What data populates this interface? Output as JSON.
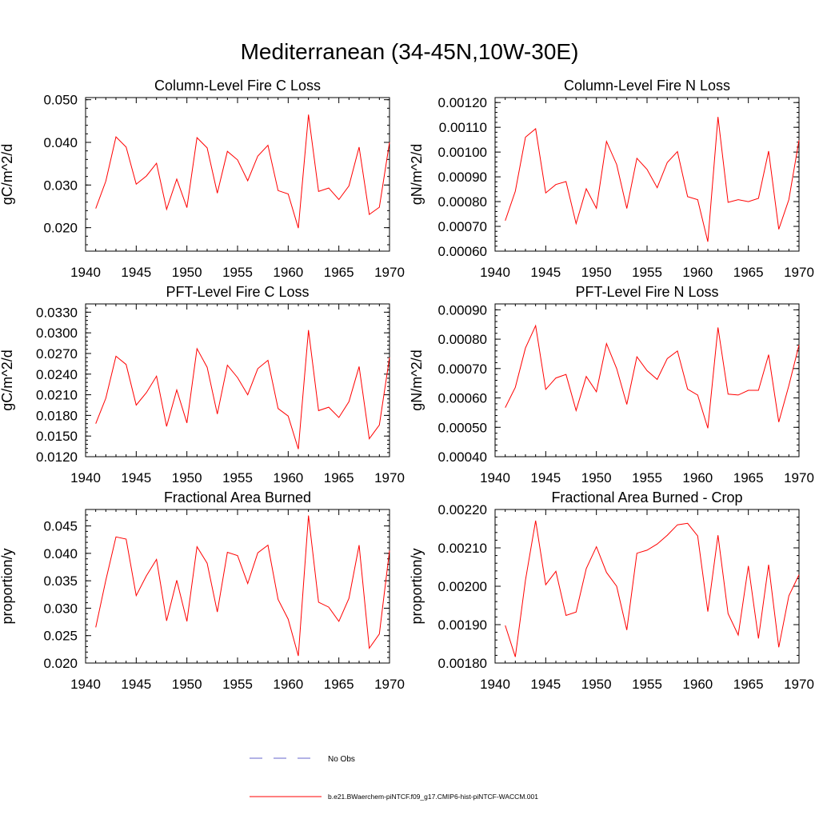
{
  "main_title": "Mediterranean (34-45N,10W-30E)",
  "colors": {
    "model": "#ff0000",
    "obs": "#6666cc",
    "axis": "#000000"
  },
  "legend": {
    "obs_label": "No Obs",
    "model_label": "b.e21.BWaerchem-piNTCF.f09_g17.CMIP6-hist-piNTCF-WACCM.001"
  },
  "chart_data": [
    {
      "type": "line",
      "title": "Column-Level Fire C Loss",
      "ylabel": "gC/m^2/d",
      "xlim": [
        1940,
        1970
      ],
      "ylim": [
        0.0145,
        0.0505
      ],
      "yticks": [
        0.02,
        0.03,
        0.04,
        0.05
      ],
      "ytick_labels": [
        "0.020",
        "0.030",
        "0.040",
        "0.050"
      ],
      "xticks": [
        1940,
        1945,
        1950,
        1955,
        1960,
        1965,
        1970
      ],
      "xtick_labels": [
        "1940",
        "1945",
        "1950",
        "1955",
        "1960",
        "1965",
        "1970"
      ],
      "x": [
        1941,
        1942,
        1943,
        1944,
        1945,
        1946,
        1947,
        1948,
        1949,
        1950,
        1951,
        1952,
        1953,
        1954,
        1955,
        1956,
        1957,
        1958,
        1959,
        1960,
        1961,
        1962,
        1963,
        1964,
        1965,
        1966,
        1967,
        1968,
        1969,
        1970
      ],
      "series": [
        {
          "values": [
            0.0245,
            0.0309,
            0.0413,
            0.0389,
            0.0302,
            0.0321,
            0.0351,
            0.0243,
            0.0314,
            0.0247,
            0.0411,
            0.0387,
            0.0281,
            0.0379,
            0.0359,
            0.031,
            0.0368,
            0.0393,
            0.0287,
            0.0279,
            0.0199,
            0.0465,
            0.0285,
            0.0293,
            0.0266,
            0.0298,
            0.0389,
            0.0231,
            0.0248,
            0.04
          ]
        }
      ]
    },
    {
      "type": "line",
      "title": "Column-Level Fire N Loss",
      "ylabel": "gN/m^2/d",
      "xlim": [
        1940,
        1970
      ],
      "ylim": [
        0.0006,
        0.00122
      ],
      "yticks": [
        0.0006,
        0.0007,
        0.0008,
        0.0009,
        0.001,
        0.0011,
        0.0012
      ],
      "ytick_labels": [
        "0.00060",
        "0.00070",
        "0.00080",
        "0.00090",
        "0.00100",
        "0.00110",
        "0.00120"
      ],
      "xticks": [
        1940,
        1945,
        1950,
        1955,
        1960,
        1965,
        1970
      ],
      "xtick_labels": [
        "1940",
        "1945",
        "1950",
        "1955",
        "1960",
        "1965",
        "1970"
      ],
      "x": [
        1941,
        1942,
        1943,
        1944,
        1945,
        1946,
        1947,
        1948,
        1949,
        1950,
        1951,
        1952,
        1953,
        1954,
        1955,
        1956,
        1957,
        1958,
        1959,
        1960,
        1961,
        1962,
        1963,
        1964,
        1965,
        1966,
        1967,
        1968,
        1969,
        1970
      ],
      "series": [
        {
          "values": [
            0.000723,
            0.000842,
            0.00106,
            0.001094,
            0.000835,
            0.000869,
            0.000881,
            0.000711,
            0.000852,
            0.000773,
            0.001043,
            0.00095,
            0.000772,
            0.000975,
            0.00093,
            0.000856,
            0.000958,
            0.001002,
            0.00082,
            0.000808,
            0.000638,
            0.001142,
            0.000797,
            0.000808,
            0.0008,
            0.000813,
            0.001004,
            0.000688,
            0.000808,
            0.001048
          ]
        }
      ]
    },
    {
      "type": "line",
      "title": "PFT-Level Fire C Loss",
      "ylabel": "gC/m^2/d",
      "xlim": [
        1940,
        1970
      ],
      "ylim": [
        0.012,
        0.0342
      ],
      "yticks": [
        0.012,
        0.015,
        0.018,
        0.021,
        0.024,
        0.027,
        0.03,
        0.033
      ],
      "ytick_labels": [
        "0.0120",
        "0.0150",
        "0.0180",
        "0.0210",
        "0.0240",
        "0.0270",
        "0.0300",
        "0.0330"
      ],
      "xticks": [
        1940,
        1945,
        1950,
        1955,
        1960,
        1965,
        1970
      ],
      "xtick_labels": [
        "1940",
        "1945",
        "1950",
        "1955",
        "1960",
        "1965",
        "1970"
      ],
      "x": [
        1941,
        1942,
        1943,
        1944,
        1945,
        1946,
        1947,
        1948,
        1949,
        1950,
        1951,
        1952,
        1953,
        1954,
        1955,
        1956,
        1957,
        1958,
        1959,
        1960,
        1961,
        1962,
        1963,
        1964,
        1965,
        1966,
        1967,
        1968,
        1969,
        1970
      ],
      "series": [
        {
          "values": [
            0.0168,
            0.0205,
            0.0266,
            0.0254,
            0.0195,
            0.0213,
            0.0237,
            0.0164,
            0.0217,
            0.0169,
            0.0277,
            0.025,
            0.0182,
            0.0253,
            0.0235,
            0.021,
            0.0248,
            0.026,
            0.019,
            0.0179,
            0.0131,
            0.0304,
            0.0187,
            0.0192,
            0.0177,
            0.02,
            0.0251,
            0.0146,
            0.0166,
            0.0264
          ]
        }
      ]
    },
    {
      "type": "line",
      "title": "PFT-Level Fire N Loss",
      "ylabel": "gN/m^2/d",
      "xlim": [
        1940,
        1970
      ],
      "ylim": [
        0.0004,
        0.00092
      ],
      "yticks": [
        0.0004,
        0.0005,
        0.0006,
        0.0007,
        0.0008,
        0.0009
      ],
      "ytick_labels": [
        "0.00040",
        "0.00050",
        "0.00060",
        "0.00070",
        "0.00080",
        "0.00090"
      ],
      "xticks": [
        1940,
        1945,
        1950,
        1955,
        1960,
        1965,
        1970
      ],
      "xtick_labels": [
        "1940",
        "1945",
        "1950",
        "1955",
        "1960",
        "1965",
        "1970"
      ],
      "x": [
        1941,
        1942,
        1943,
        1944,
        1945,
        1946,
        1947,
        1948,
        1949,
        1950,
        1951,
        1952,
        1953,
        1954,
        1955,
        1956,
        1957,
        1958,
        1959,
        1960,
        1961,
        1962,
        1963,
        1964,
        1965,
        1966,
        1967,
        1968,
        1969,
        1970
      ],
      "series": [
        {
          "values": [
            0.000567,
            0.000636,
            0.00077,
            0.000846,
            0.000629,
            0.000668,
            0.00068,
            0.000557,
            0.000673,
            0.000621,
            0.000785,
            0.0007,
            0.000578,
            0.00074,
            0.000693,
            0.000663,
            0.000734,
            0.00076,
            0.00063,
            0.00061,
            0.000497,
            0.00084,
            0.000613,
            0.00061,
            0.000626,
            0.000626,
            0.000747,
            0.000518,
            0.000642,
            0.00078
          ]
        }
      ]
    },
    {
      "type": "line",
      "title": "Fractional Area Burned",
      "ylabel": "proportion/y",
      "xlim": [
        1940,
        1970
      ],
      "ylim": [
        0.02,
        0.048
      ],
      "yticks": [
        0.02,
        0.025,
        0.03,
        0.035,
        0.04,
        0.045
      ],
      "ytick_labels": [
        "0.020",
        "0.025",
        "0.030",
        "0.035",
        "0.040",
        "0.045"
      ],
      "xticks": [
        1940,
        1945,
        1950,
        1955,
        1960,
        1965,
        1970
      ],
      "xtick_labels": [
        "1940",
        "1945",
        "1950",
        "1955",
        "1960",
        "1965",
        "1970"
      ],
      "x": [
        1941,
        1942,
        1943,
        1944,
        1945,
        1946,
        1947,
        1948,
        1949,
        1950,
        1951,
        1952,
        1953,
        1954,
        1955,
        1956,
        1957,
        1958,
        1959,
        1960,
        1961,
        1962,
        1963,
        1964,
        1965,
        1966,
        1967,
        1968,
        1969,
        1970
      ],
      "series": [
        {
          "values": [
            0.0265,
            0.0351,
            0.043,
            0.0426,
            0.0323,
            0.0359,
            0.0389,
            0.0277,
            0.0351,
            0.0276,
            0.0412,
            0.0382,
            0.0293,
            0.0402,
            0.0396,
            0.0345,
            0.0401,
            0.0415,
            0.0316,
            0.028,
            0.0213,
            0.0469,
            0.0311,
            0.0302,
            0.0276,
            0.0318,
            0.0415,
            0.0227,
            0.0253,
            0.0405
          ]
        }
      ]
    },
    {
      "type": "line",
      "title": "Fractional Area Burned - Crop",
      "ylabel": "proportion/y",
      "xlim": [
        1940,
        1970
      ],
      "ylim": [
        0.0018,
        0.0022
      ],
      "yticks": [
        0.0018,
        0.0019,
        0.002,
        0.0021,
        0.0022
      ],
      "ytick_labels": [
        "0.00180",
        "0.00190",
        "0.00200",
        "0.00210",
        "0.00220"
      ],
      "xticks": [
        1940,
        1945,
        1950,
        1955,
        1960,
        1965,
        1970
      ],
      "xtick_labels": [
        "1940",
        "1945",
        "1950",
        "1955",
        "1960",
        "1965",
        "1970"
      ],
      "x": [
        1941,
        1942,
        1943,
        1944,
        1945,
        1946,
        1947,
        1948,
        1949,
        1950,
        1951,
        1952,
        1953,
        1954,
        1955,
        1956,
        1957,
        1958,
        1959,
        1960,
        1961,
        1962,
        1963,
        1964,
        1965,
        1966,
        1967,
        1968,
        1969,
        1970
      ],
      "series": [
        {
          "values": [
            0.001898,
            0.001816,
            0.002016,
            0.002171,
            0.002004,
            0.002039,
            0.001924,
            0.001933,
            0.002046,
            0.002103,
            0.002036,
            0.002,
            0.001886,
            0.002086,
            0.002094,
            0.00211,
            0.002133,
            0.00216,
            0.002164,
            0.002131,
            0.001934,
            0.002133,
            0.001929,
            0.001873,
            0.002053,
            0.001864,
            0.002056,
            0.001841,
            0.001975,
            0.00203
          ]
        }
      ]
    }
  ]
}
